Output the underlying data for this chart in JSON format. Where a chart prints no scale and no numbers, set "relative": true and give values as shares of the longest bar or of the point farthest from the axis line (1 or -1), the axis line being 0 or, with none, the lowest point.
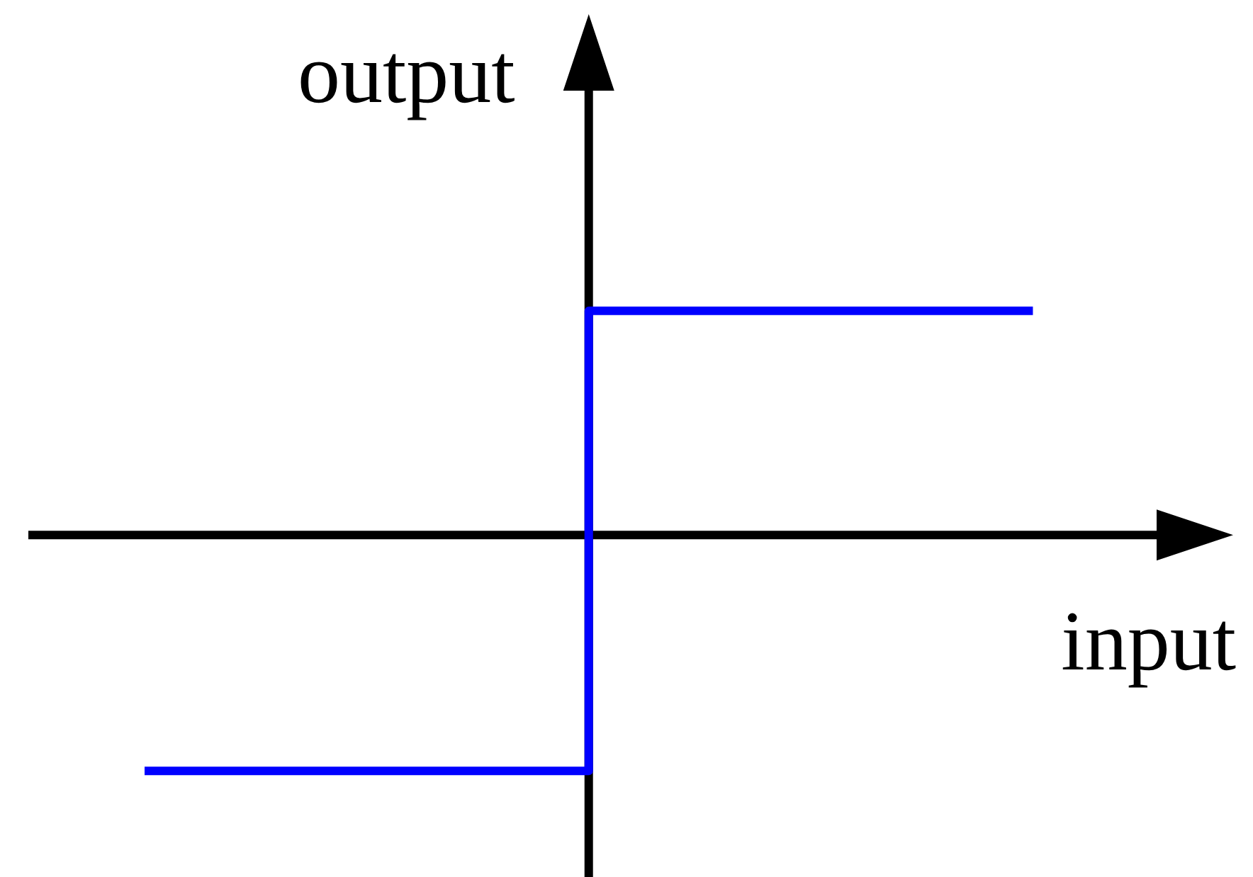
{
  "chart_data": {
    "type": "step",
    "xlabel": "input",
    "ylabel": "output",
    "categories": [
      null,
      null,
      null
    ],
    "relative": true,
    "series": [
      {
        "color": "#0000ff",
        "values": [
          -1,
          0.95,
          0.95
        ]
      }
    ]
  }
}
